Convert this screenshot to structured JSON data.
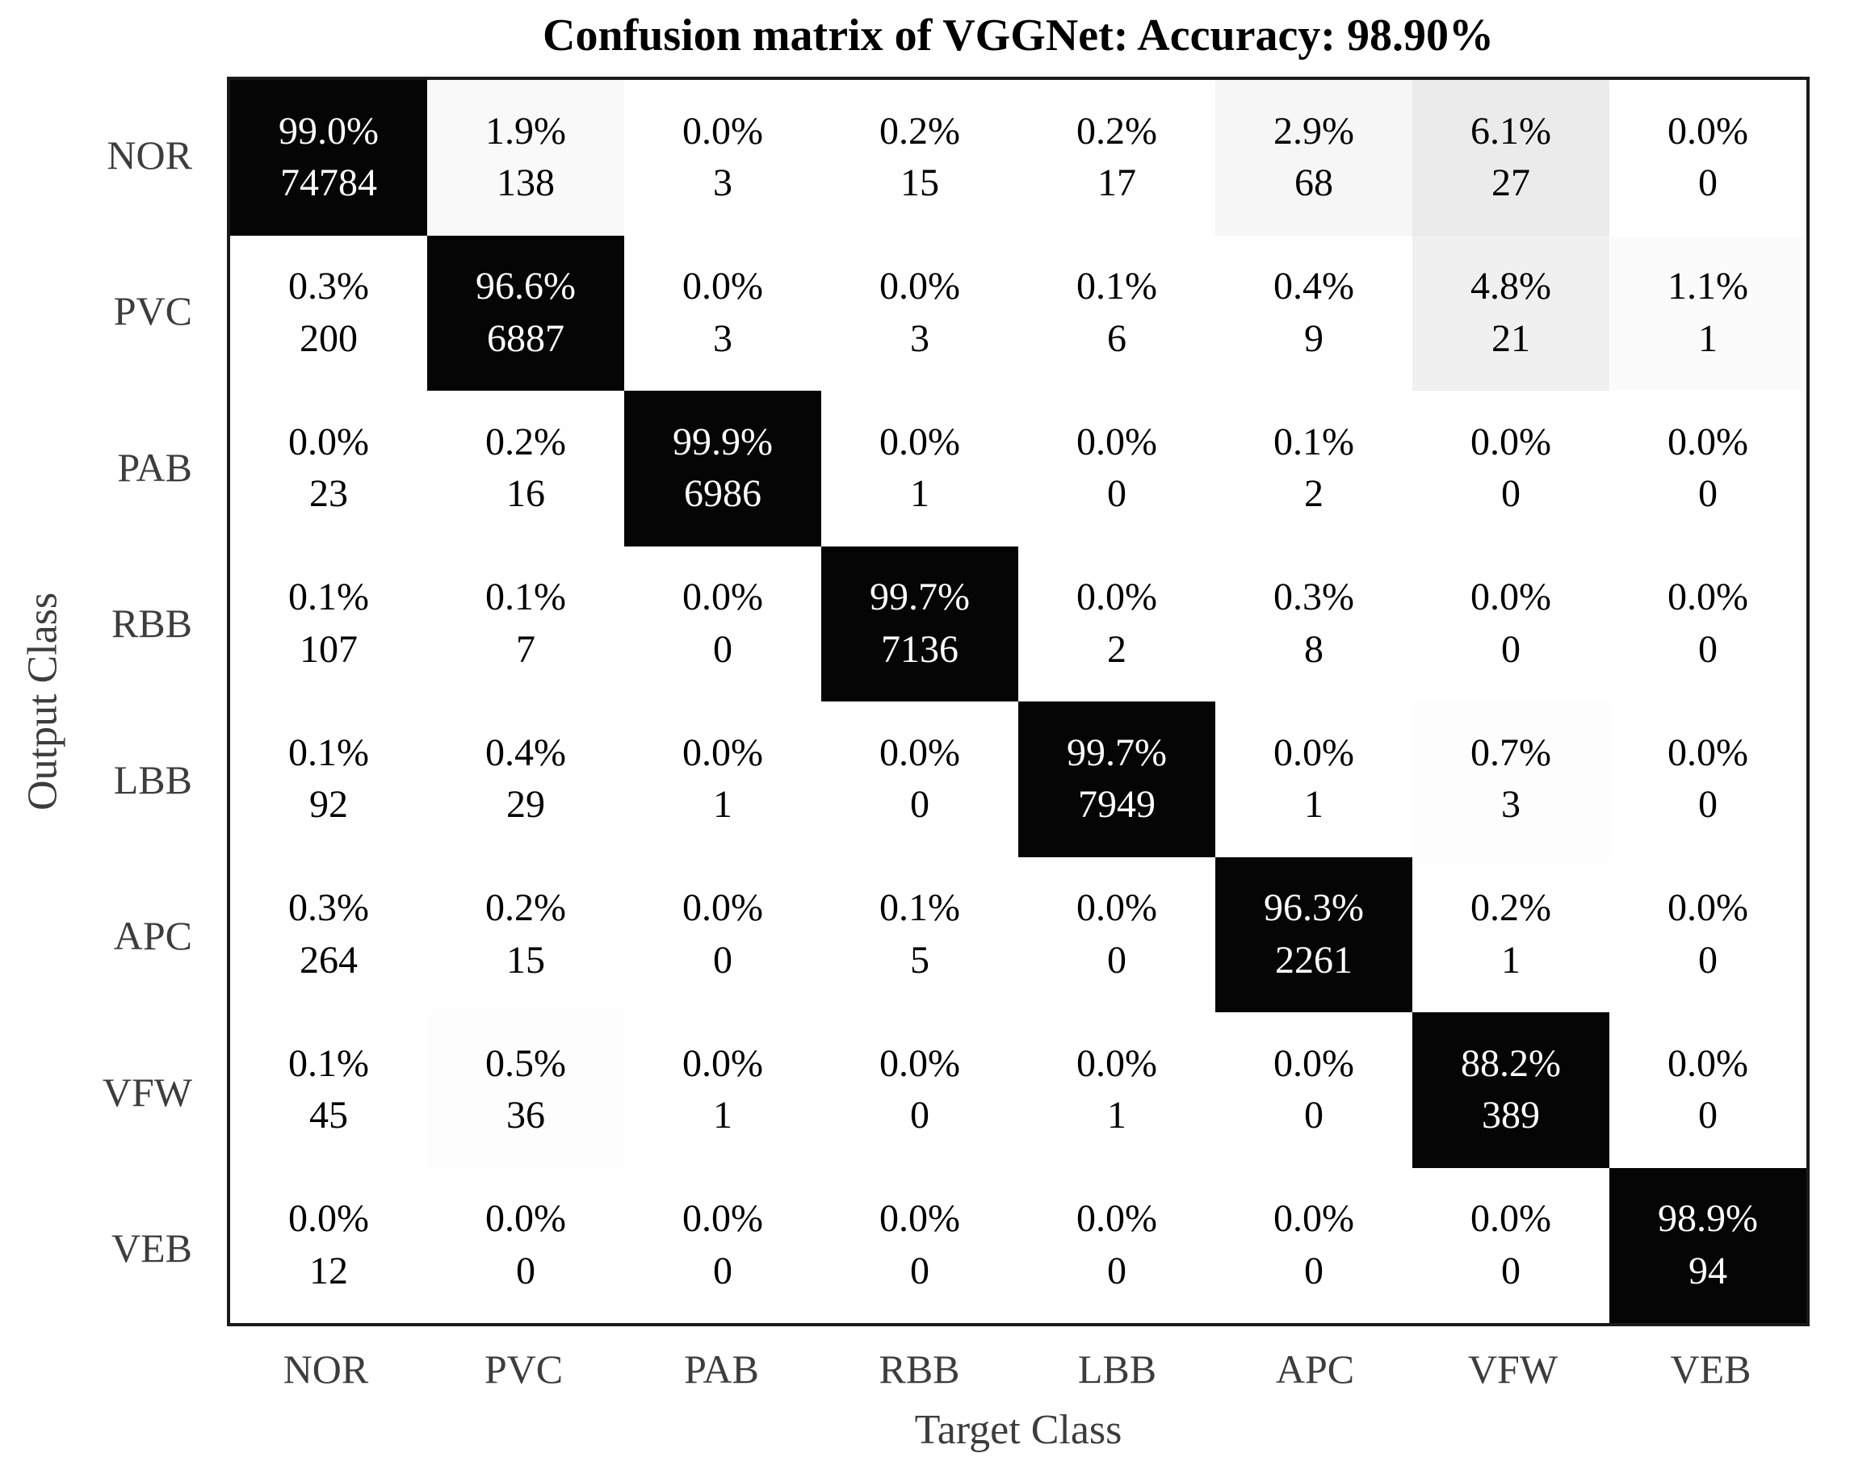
{
  "chart_data": {
    "type": "heatmap",
    "subtype": "confusion-matrix",
    "title": "Confusion matrix of VGGNet: Accuracy: 98.90%",
    "xlabel": "Target Class",
    "ylabel": "Output Class",
    "classes": [
      "NOR",
      "PVC",
      "PAB",
      "RBB",
      "LBB",
      "APC",
      "VFW",
      "VEB"
    ],
    "percent": [
      [
        99.0,
        1.9,
        0.0,
        0.2,
        0.2,
        2.9,
        6.1,
        0.0
      ],
      [
        0.3,
        96.6,
        0.0,
        0.0,
        0.1,
        0.4,
        4.8,
        1.1
      ],
      [
        0.0,
        0.2,
        99.9,
        0.0,
        0.0,
        0.1,
        0.0,
        0.0
      ],
      [
        0.1,
        0.1,
        0.0,
        99.7,
        0.0,
        0.3,
        0.0,
        0.0
      ],
      [
        0.1,
        0.4,
        0.0,
        0.0,
        99.7,
        0.0,
        0.7,
        0.0
      ],
      [
        0.3,
        0.2,
        0.0,
        0.1,
        0.0,
        96.3,
        0.2,
        0.0
      ],
      [
        0.1,
        0.5,
        0.0,
        0.0,
        0.0,
        0.0,
        88.2,
        0.0
      ],
      [
        0.0,
        0.0,
        0.0,
        0.0,
        0.0,
        0.0,
        0.0,
        98.9
      ]
    ],
    "counts": [
      [
        74784,
        138,
        3,
        15,
        17,
        68,
        27,
        0
      ],
      [
        200,
        6887,
        3,
        3,
        6,
        9,
        21,
        1
      ],
      [
        23,
        16,
        6986,
        1,
        0,
        2,
        0,
        0
      ],
      [
        107,
        7,
        0,
        7136,
        2,
        8,
        0,
        0
      ],
      [
        92,
        29,
        1,
        0,
        7949,
        1,
        3,
        0
      ],
      [
        264,
        15,
        0,
        5,
        0,
        2261,
        1,
        0
      ],
      [
        45,
        36,
        1,
        0,
        1,
        0,
        389,
        0
      ],
      [
        12,
        0,
        0,
        0,
        0,
        0,
        0,
        94
      ]
    ],
    "legend_position": "none",
    "grid": false,
    "colors": {
      "diagonal_bg": "#050505",
      "diagonal_text": "#ffffff",
      "cell_text": "#000000",
      "offdiag_base_bg": "#ffffff",
      "border": "#1a1a1a",
      "tick_text": "#3d3d3d",
      "title_text": "#000000"
    }
  }
}
